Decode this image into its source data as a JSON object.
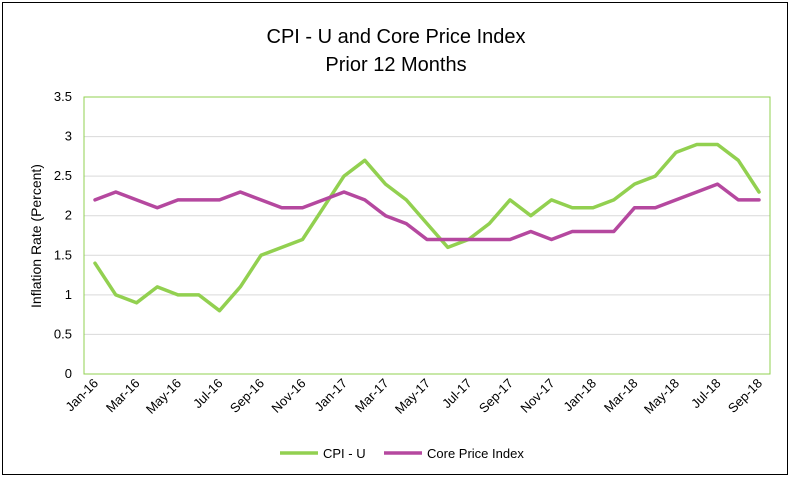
{
  "chart_data": {
    "type": "line",
    "title": "CPI - U and Core Price Index",
    "subtitle": "Prior 12 Months",
    "xlabel": "",
    "ylabel": "Inflation Rate (Percent)",
    "ylim": [
      0,
      3.5
    ],
    "yticks": [
      "0",
      "0.5",
      "1",
      "1.5",
      "2",
      "2.5",
      "3",
      "3.5"
    ],
    "x": [
      "Jan-16",
      "Feb-16",
      "Mar-16",
      "Apr-16",
      "May-16",
      "Jun-16",
      "Jul-16",
      "Aug-16",
      "Sep-16",
      "Oct-16",
      "Nov-16",
      "Dec-16",
      "Jan-17",
      "Feb-17",
      "Mar-17",
      "Apr-17",
      "May-17",
      "Jun-17",
      "Jul-17",
      "Aug-17",
      "Sep-17",
      "Oct-17",
      "Nov-17",
      "Dec-17",
      "Jan-18",
      "Feb-18",
      "Mar-18",
      "Apr-18",
      "May-18",
      "Jun-18",
      "Jul-18",
      "Aug-18",
      "Sep-18"
    ],
    "xtick_labels": [
      "Jan-16",
      "Mar-16",
      "May-16",
      "Jul-16",
      "Sep-16",
      "Nov-16",
      "Jan-17",
      "Mar-17",
      "May-17",
      "Jul-17",
      "Sep-17",
      "Nov-17",
      "Jan-18",
      "Mar-18",
      "May-18",
      "Jul-18",
      "Sep-18"
    ],
    "grid": true,
    "legend_position": "bottom",
    "series": [
      {
        "name": "CPI - U",
        "color": "#92D050",
        "values": [
          1.4,
          1.0,
          0.9,
          1.1,
          1.0,
          1.0,
          0.8,
          1.1,
          1.5,
          1.6,
          1.7,
          2.1,
          2.5,
          2.7,
          2.4,
          2.2,
          1.9,
          1.6,
          1.7,
          1.9,
          2.2,
          2.0,
          2.2,
          2.1,
          2.1,
          2.2,
          2.4,
          2.5,
          2.8,
          2.9,
          2.9,
          2.7,
          2.3
        ]
      },
      {
        "name": "Core Price Index",
        "color": "#B5489F",
        "values": [
          2.2,
          2.3,
          2.2,
          2.1,
          2.2,
          2.2,
          2.2,
          2.3,
          2.2,
          2.1,
          2.1,
          2.2,
          2.3,
          2.2,
          2.0,
          1.9,
          1.7,
          1.7,
          1.7,
          1.7,
          1.7,
          1.8,
          1.7,
          1.8,
          1.8,
          1.8,
          2.1,
          2.1,
          2.2,
          2.3,
          2.4,
          2.2,
          2.2
        ]
      }
    ],
    "plot_border_color": "#92D050",
    "gridline_color": "#D9D9D9"
  }
}
